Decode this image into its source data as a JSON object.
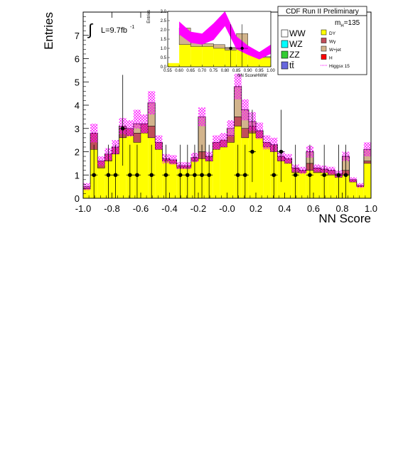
{
  "colors": {
    "DY": "#ffff00",
    "Wgamma": "#c04e5a",
    "Wjet": "#d2b48c",
    "WW": "#ffffff",
    "WZ": "#00ffff",
    "ZZ": "#33cc33",
    "ttbar": "#6666dd",
    "H": "#ff0000",
    "higgs": "#ff00ff",
    "band": "#ff00ff",
    "data": "#000000"
  },
  "chart_data": {
    "type": "bar",
    "ylabel": "Entries",
    "xlabel": "NN Score",
    "x_range": [
      -1.0,
      1.0
    ],
    "ylim": [
      0,
      8
    ],
    "x_ticks": [
      "-1.0",
      "-0.8",
      "-0.6",
      "-0.4",
      "-0.2",
      "-0.0",
      "0.2",
      "0.4",
      "0.6",
      "0.8",
      "1.0"
    ],
    "y_ticks": [
      "0",
      "1",
      "2",
      "3",
      "4",
      "5",
      "6",
      "7"
    ],
    "luminosity_label": "L=9.7fb",
    "luminosity_sup": "-1",
    "experiment_label": "CDF Run II Preliminary",
    "mass_label": "m",
    "mass_sub": "H",
    "mass_value": "=135",
    "legend": {
      "left": [
        {
          "key": "WW",
          "label": "WW"
        },
        {
          "key": "WZ",
          "label": "WZ"
        },
        {
          "key": "ZZ",
          "label": "ZZ"
        },
        {
          "key": "ttbar",
          "label": "tt̄"
        }
      ],
      "right": [
        {
          "key": "DY",
          "label": "DY"
        },
        {
          "key": "Wgamma",
          "label": "Wγ"
        },
        {
          "key": "Wjet",
          "label": "W+jet"
        },
        {
          "key": "H",
          "label": "H"
        },
        {
          "key": "higgs",
          "label": "Higgsx 15"
        }
      ]
    },
    "bin_edges": [
      -1.0,
      -0.95,
      -0.9,
      -0.85,
      -0.8,
      -0.75,
      -0.7,
      -0.65,
      -0.6,
      -0.55,
      -0.5,
      -0.45,
      -0.4,
      -0.35,
      -0.3,
      -0.25,
      -0.2,
      -0.15,
      -0.1,
      -0.05,
      0.0,
      0.05,
      0.1,
      0.15,
      0.2,
      0.25,
      0.3,
      0.35,
      0.4,
      0.45,
      0.5,
      0.55,
      0.6,
      0.65,
      0.7,
      0.75,
      0.8,
      0.85,
      0.9,
      0.95,
      1.0
    ],
    "series": [
      {
        "name": "DY",
        "values": [
          0.4,
          2.1,
          1.3,
          1.6,
          1.9,
          2.6,
          2.7,
          2.4,
          2.8,
          2.6,
          2.1,
          1.6,
          1.5,
          1.3,
          1.3,
          1.6,
          1.7,
          1.6,
          2.1,
          2.2,
          2.4,
          3.1,
          2.6,
          2.8,
          2.6,
          2.2,
          2.0,
          1.6,
          1.5,
          1.1,
          1.1,
          1.2,
          1.1,
          1.1,
          1.0,
          0.9,
          1.0,
          0.7,
          0.5,
          1.5
        ]
      },
      {
        "name": "Wγ",
        "values": [
          0.05,
          0.7,
          0.3,
          0.3,
          0.3,
          0.4,
          0.3,
          0.4,
          0.4,
          0.5,
          0.3,
          0.1,
          0.15,
          0.1,
          0.1,
          0.15,
          0.3,
          0.2,
          0.3,
          0.3,
          0.3,
          0.4,
          0.4,
          0.3,
          0.3,
          0.2,
          0.3,
          0.2,
          0.2,
          0.2,
          0.1,
          0.3,
          0.2,
          0.15,
          0.2,
          0.15,
          0.2,
          0.1,
          0.05,
          0.1
        ]
      },
      {
        "name": "W+jet",
        "values": [
          0.05,
          0.0,
          0.0,
          0.0,
          0.0,
          0.1,
          0.0,
          0.4,
          0.0,
          1.0,
          0.0,
          0.0,
          0.0,
          0.0,
          0.0,
          0.0,
          1.5,
          0.0,
          0.0,
          0.0,
          0.3,
          1.3,
          0.8,
          0.2,
          0.0,
          0.0,
          0.0,
          0.0,
          0.0,
          0.0,
          0.0,
          0.5,
          0.0,
          0.0,
          0.0,
          0.0,
          0.6,
          0.0,
          0.0,
          0.5
        ]
      }
    ],
    "band": {
      "center": [
        0.5,
        2.8,
        1.6,
        1.9,
        2.2,
        3.1,
        3.0,
        3.4,
        3.2,
        4.1,
        2.4,
        1.7,
        1.65,
        1.4,
        1.4,
        1.75,
        3.5,
        1.8,
        2.4,
        2.5,
        3.0,
        4.8,
        3.8,
        3.3,
        2.9,
        2.4,
        2.3,
        1.8,
        1.7,
        1.3,
        1.2,
        2.0,
        1.3,
        1.25,
        1.2,
        1.05,
        1.8,
        0.8,
        0.55,
        2.1
      ],
      "half_width": [
        0.15,
        0.4,
        0.2,
        0.25,
        0.3,
        0.35,
        0.35,
        0.4,
        0.4,
        0.5,
        0.3,
        0.2,
        0.2,
        0.15,
        0.15,
        0.2,
        0.4,
        0.2,
        0.3,
        0.3,
        0.35,
        0.55,
        0.45,
        0.4,
        0.35,
        0.3,
        0.3,
        0.2,
        0.2,
        0.15,
        0.15,
        0.25,
        0.15,
        0.15,
        0.15,
        0.15,
        0.2,
        0.1,
        0.1,
        0.3
      ]
    },
    "data_points": [
      {
        "x": -0.925,
        "y": 1,
        "err_low": 1,
        "err_high": 1.3
      },
      {
        "x": -0.825,
        "y": 1,
        "err_low": 1,
        "err_high": 1.3
      },
      {
        "x": -0.775,
        "y": 1,
        "err_low": 1,
        "err_high": 1.3
      },
      {
        "x": -0.725,
        "y": 3,
        "err_low": 1.6,
        "err_high": 2.3
      },
      {
        "x": -0.675,
        "y": 1,
        "err_low": 1,
        "err_high": 1.3
      },
      {
        "x": -0.625,
        "y": 1,
        "err_low": 1,
        "err_high": 1.3
      },
      {
        "x": -0.525,
        "y": 1,
        "err_low": 1,
        "err_high": 1.3
      },
      {
        "x": -0.425,
        "y": 1,
        "err_low": 1,
        "err_high": 1.3
      },
      {
        "x": -0.325,
        "y": 1,
        "err_low": 1,
        "err_high": 1.3
      },
      {
        "x": -0.275,
        "y": 1,
        "err_low": 1,
        "err_high": 1.3
      },
      {
        "x": -0.225,
        "y": 1,
        "err_low": 1,
        "err_high": 1.3
      },
      {
        "x": -0.175,
        "y": 1,
        "err_low": 1,
        "err_high": 1.3
      },
      {
        "x": -0.125,
        "y": 1,
        "err_low": 1,
        "err_high": 1.3
      },
      {
        "x": 0.075,
        "y": 1,
        "err_low": 1,
        "err_high": 1.3
      },
      {
        "x": 0.125,
        "y": 1,
        "err_low": 1,
        "err_high": 1.3
      },
      {
        "x": 0.175,
        "y": 2,
        "err_low": 1.3,
        "err_high": 1.8
      },
      {
        "x": 0.325,
        "y": 1,
        "err_low": 1,
        "err_high": 1.3
      },
      {
        "x": 0.375,
        "y": 2,
        "err_low": 1.3,
        "err_high": 1.8
      },
      {
        "x": 0.475,
        "y": 1,
        "err_low": 1,
        "err_high": 1.3
      },
      {
        "x": 0.575,
        "y": 1,
        "err_low": 1,
        "err_high": 1.3
      },
      {
        "x": 0.675,
        "y": 1,
        "err_low": 1,
        "err_high": 1.3
      },
      {
        "x": 0.775,
        "y": 1,
        "err_low": 1,
        "err_high": 1.3
      },
      {
        "x": 0.825,
        "y": 1,
        "err_low": 1,
        "err_high": 1.3
      }
    ],
    "inset": {
      "ylabel": "Entries",
      "xlabel": "NN ScoreHWW",
      "x_range": [
        0.55,
        1.0
      ],
      "ylim": [
        0,
        3.0
      ],
      "x_ticks": [
        "0.55",
        "0.60",
        "0.65",
        "0.70",
        "0.75",
        "0.80",
        "0.85",
        "0.90",
        "0.95",
        "1.00"
      ],
      "y_ticks": [
        "0.0",
        "0.5",
        "1.0",
        "1.5",
        "2.0",
        "2.5",
        "3.0"
      ],
      "bin_edges": [
        0.55,
        0.6,
        0.65,
        0.7,
        0.75,
        0.8,
        0.85,
        0.9,
        0.95,
        1.0
      ],
      "dy": [
        0.2,
        1.2,
        1.1,
        1.1,
        1.0,
        0.9,
        1.0,
        0.7,
        0.5,
        1.5
      ],
      "total": [
        0.2,
        2.1,
        1.3,
        1.25,
        1.2,
        1.05,
        1.8,
        0.8,
        0.55,
        2.1
      ],
      "band_center": [
        2.1,
        1.6,
        1.5,
        1.9,
        2.9,
        1.3,
        0.9,
        0.6,
        0.95
      ],
      "band_x": [
        0.6,
        0.65,
        0.7,
        0.75,
        0.8,
        0.85,
        0.9,
        0.95,
        1.0
      ],
      "band_half": [
        0.35,
        0.3,
        0.3,
        0.45,
        0.7,
        0.35,
        0.25,
        0.2,
        0.25
      ],
      "data_points": [
        {
          "x": 0.825,
          "y": 1,
          "err_low": 1,
          "err_high": 1.3
        },
        {
          "x": 0.875,
          "y": 1,
          "err_low": 1,
          "err_high": 1.3
        }
      ]
    }
  }
}
